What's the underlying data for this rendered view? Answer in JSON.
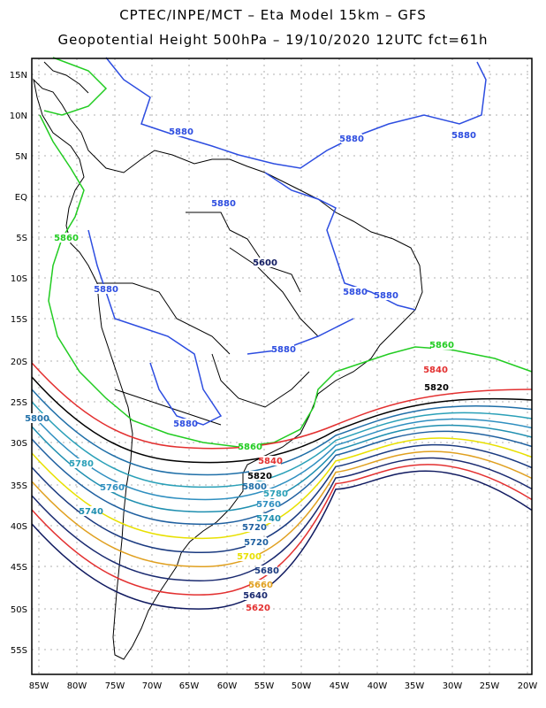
{
  "title_line1": "CPTEC/INPE/MCT –  Eta Model 15km – GFS",
  "title_line2": "Geopotential Height 500hPa – 19/10/2020 12UTC fct=61h",
  "lat_ticks": [
    "15N",
    "10N",
    "5N",
    "EQ",
    "5S",
    "10S",
    "15S",
    "20S",
    "25S",
    "30S",
    "35S",
    "40S",
    "45S",
    "50S",
    "55S"
  ],
  "lon_ticks": [
    "85W",
    "80W",
    "75W",
    "70W",
    "65W",
    "60W",
    "55W",
    "50W",
    "45W",
    "40W",
    "35W",
    "30W",
    "25W",
    "20W"
  ],
  "contour_labels": [
    {
      "text": "5880",
      "color": "#2d4de0"
    },
    {
      "text": "5880",
      "color": "#2d4de0"
    },
    {
      "text": "5880",
      "color": "#2d4de0"
    },
    {
      "text": "5880",
      "color": "#2d4de0"
    },
    {
      "text": "5880",
      "color": "#2d4de0"
    },
    {
      "text": "5880",
      "color": "#2d4de0"
    },
    {
      "text": "5880",
      "color": "#2d4de0"
    },
    {
      "text": "5880",
      "color": "#2d4de0"
    },
    {
      "text": "5880",
      "color": "#2d4de0"
    },
    {
      "text": "5860",
      "color": "#22cc22"
    },
    {
      "text": "5860",
      "color": "#22cc22"
    },
    {
      "text": "5860",
      "color": "#22cc22"
    },
    {
      "text": "5840",
      "color": "#e33030"
    },
    {
      "text": "5840",
      "color": "#e33030"
    },
    {
      "text": "5820",
      "color": "#000000"
    },
    {
      "text": "5820",
      "color": "#000000"
    },
    {
      "text": "5800",
      "color": "#1f6fa8"
    },
    {
      "text": "5800",
      "color": "#1f6fa8"
    },
    {
      "text": "5780",
      "color": "#2aa0b8"
    },
    {
      "text": "5780",
      "color": "#2aa0b8"
    },
    {
      "text": "5760",
      "color": "#2f8fc0"
    },
    {
      "text": "5760",
      "color": "#2f8fc0"
    },
    {
      "text": "5740",
      "color": "#1f8fb0"
    },
    {
      "text": "5740",
      "color": "#1f8fb0"
    },
    {
      "text": "5720",
      "color": "#1f60a0"
    },
    {
      "text": "5720",
      "color": "#1f60a0"
    },
    {
      "text": "5700",
      "color": "#e8e000"
    },
    {
      "text": "5680",
      "color": "#1a3a80"
    },
    {
      "text": "5660",
      "color": "#e0a020"
    },
    {
      "text": "5640",
      "color": "#1a2a70"
    },
    {
      "text": "5620",
      "color": "#e33030"
    },
    {
      "text": "5600",
      "color": "#101a60"
    }
  ]
}
